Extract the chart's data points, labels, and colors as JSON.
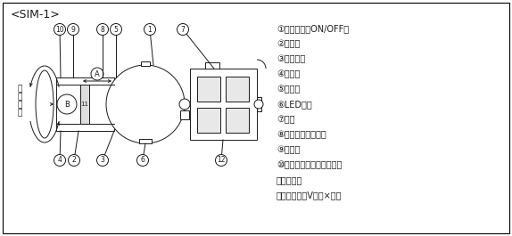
{
  "title": "<SIM-1>",
  "bg_color": "#ffffff",
  "border_color": "#000000",
  "line_color": "#1a1a1a",
  "observation_label_chars": [
    "観",
    "察",
    "方",
    "向"
  ],
  "legend_items": [
    "①スイッチ（ON/OFF）",
    "②アーム",
    "③円偏光板",
    "④偏光板",
    "⑤反射鏡",
    "⑥LED電球",
    "⑦本体",
    "⑧ヘッド・キャップ",
    "⑨回転板",
    "⑩回転板つまみ・止めねじ",
    "⑪被検査物",
    "⑫電池１．５V単１×６本"
  ],
  "callout_label_A": "A",
  "callout_label_B": "B",
  "callout_label_11": "11",
  "font_size_title": 9,
  "font_size_legend": 7,
  "font_size_callout": 5.5,
  "font_size_obs": 6.5
}
